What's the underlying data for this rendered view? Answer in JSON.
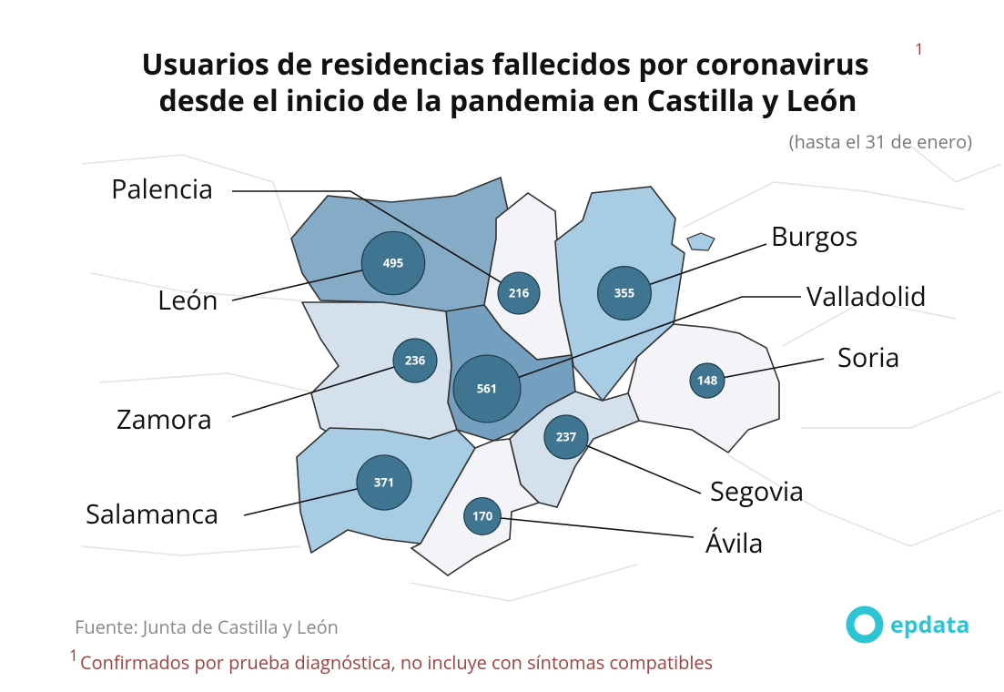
{
  "map_data": {
    "title": [
      "Usuarios de residencias fallecidos por coronavirus",
      "desde el inicio de la pandemia en Castilla y León"
    ],
    "title_note_marker": "1",
    "subtitle": "(hasta el 31 de enero)",
    "regions": [
      {
        "name": "León",
        "value": 495,
        "color": "#86abc6"
      },
      {
        "name": "Palencia",
        "value": 216,
        "color": "#f3f3f8"
      },
      {
        "name": "Burgos",
        "value": 355,
        "color": "#a8cce3"
      },
      {
        "name": "Soria",
        "value": 148,
        "color": "#f3f3f8"
      },
      {
        "name": "Valladolid",
        "value": 561,
        "color": "#759fbe"
      },
      {
        "name": "Zamora",
        "value": 236,
        "color": "#d4e1ed"
      },
      {
        "name": "Salamanca",
        "value": 371,
        "color": "#a8cce3"
      },
      {
        "name": "Segovia",
        "value": 237,
        "color": "#d4e1ed"
      },
      {
        "name": "Ávila",
        "value": 170,
        "color": "#f3f3f8"
      }
    ],
    "bubble_color": "#3f7591",
    "source": "Fuente: Junta de Castilla y León",
    "footnote": {
      "marker": "1",
      "text": "Confirmados por prueba diagnóstica, no incluye con síntomas compatibles"
    },
    "logo": "epdata"
  }
}
